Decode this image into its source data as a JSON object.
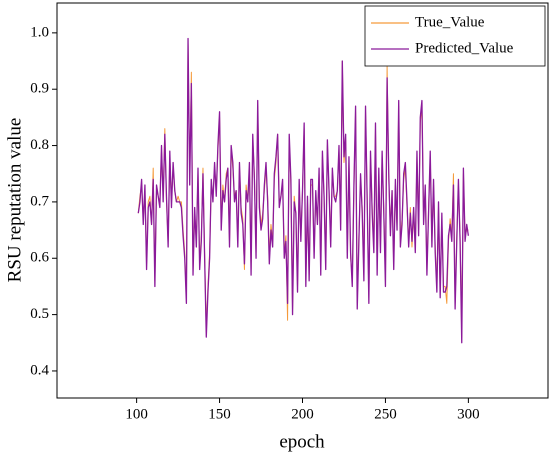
{
  "chart_data": {
    "type": "line",
    "xlabel": "epoch",
    "ylabel": "RSU reputation value",
    "xlim": [
      52,
      348
    ],
    "ylim": [
      0.352,
      1.053
    ],
    "xticks": [
      100,
      150,
      200,
      250,
      300
    ],
    "yticks": [
      0.4,
      0.5,
      0.6,
      0.7,
      0.8,
      0.9,
      {
        "value": 1,
        "label": "1.0"
      }
    ],
    "legend": "upper right",
    "x": [
      101,
      102,
      103,
      104,
      105,
      106,
      107,
      108,
      109,
      110,
      111,
      112,
      113,
      114,
      115,
      116,
      117,
      118,
      119,
      120,
      121,
      122,
      123,
      124,
      125,
      126,
      127,
      128,
      129,
      130,
      131,
      132,
      133,
      134,
      135,
      136,
      137,
      138,
      139,
      140,
      141,
      142,
      143,
      144,
      145,
      146,
      147,
      148,
      149,
      150,
      151,
      152,
      153,
      154,
      155,
      156,
      157,
      158,
      159,
      160,
      161,
      162,
      163,
      164,
      165,
      166,
      167,
      168,
      169,
      170,
      171,
      172,
      173,
      174,
      175,
      176,
      177,
      178,
      179,
      180,
      181,
      182,
      183,
      184,
      185,
      186,
      187,
      188,
      189,
      190,
      191,
      192,
      193,
      194,
      195,
      196,
      197,
      198,
      199,
      200,
      201,
      202,
      203,
      204,
      205,
      206,
      207,
      208,
      209,
      210,
      211,
      212,
      213,
      214,
      215,
      216,
      217,
      218,
      219,
      220,
      221,
      222,
      223,
      224,
      225,
      226,
      227,
      228,
      229,
      230,
      231,
      232,
      233,
      234,
      235,
      236,
      237,
      238,
      239,
      240,
      241,
      242,
      243,
      244,
      245,
      246,
      247,
      248,
      249,
      250,
      251,
      252,
      253,
      254,
      255,
      256,
      257,
      258,
      259,
      260,
      261,
      262,
      263,
      264,
      265,
      266,
      267,
      268,
      269,
      270,
      271,
      272,
      273,
      274,
      275,
      276,
      277,
      278,
      279,
      280,
      281,
      282,
      283,
      284,
      285,
      286,
      287,
      288,
      289,
      290,
      291,
      292,
      293,
      294,
      295,
      296,
      297,
      298,
      299,
      300
    ],
    "series": [
      {
        "name": "True_Value",
        "color": "#f59a3a",
        "values": [
          0.68,
          0.71,
          0.73,
          0.67,
          0.72,
          0.59,
          0.7,
          0.71,
          0.66,
          0.76,
          0.56,
          0.72,
          0.71,
          0.7,
          0.79,
          0.71,
          0.83,
          0.7,
          0.63,
          0.78,
          0.7,
          0.76,
          0.72,
          0.7,
          0.71,
          0.7,
          0.7,
          0.65,
          0.61,
          0.53,
          0.98,
          0.74,
          0.93,
          0.58,
          0.68,
          0.63,
          0.75,
          0.59,
          0.64,
          0.76,
          0.61,
          0.47,
          0.55,
          0.61,
          0.73,
          0.71,
          0.76,
          0.72,
          0.79,
          0.85,
          0.66,
          0.73,
          0.7,
          0.75,
          0.76,
          0.63,
          0.79,
          0.76,
          0.71,
          0.72,
          0.63,
          0.76,
          0.69,
          0.67,
          0.58,
          0.73,
          0.7,
          0.76,
          0.58,
          0.81,
          0.75,
          0.61,
          0.87,
          0.7,
          0.66,
          0.68,
          0.72,
          0.76,
          0.71,
          0.6,
          0.66,
          0.63,
          0.74,
          0.77,
          0.82,
          0.7,
          0.71,
          0.73,
          0.61,
          0.64,
          0.49,
          0.81,
          0.73,
          0.51,
          0.71,
          0.68,
          0.55,
          0.73,
          0.64,
          0.72,
          0.83,
          0.56,
          0.7,
          0.57,
          0.73,
          0.73,
          0.61,
          0.71,
          0.66,
          0.75,
          0.58,
          0.78,
          0.71,
          0.59,
          0.8,
          0.72,
          0.63,
          0.75,
          0.71,
          0.71,
          0.72,
          0.79,
          0.66,
          0.95,
          0.77,
          0.81,
          0.61,
          0.77,
          0.6,
          0.57,
          0.72,
          0.86,
          0.52,
          0.64,
          0.74,
          0.69,
          0.57,
          0.86,
          0.71,
          0.53,
          0.78,
          0.69,
          0.62,
          0.83,
          0.58,
          0.75,
          0.62,
          0.78,
          0.69,
          0.56,
          0.94,
          0.74,
          0.65,
          0.72,
          0.59,
          0.73,
          0.66,
          0.87,
          0.63,
          0.67,
          0.74,
          0.76,
          0.69,
          0.63,
          0.69,
          0.62,
          0.68,
          0.62,
          0.78,
          0.65,
          0.84,
          0.87,
          0.67,
          0.72,
          0.58,
          0.69,
          0.78,
          0.63,
          0.73,
          0.62,
          0.55,
          0.69,
          0.54,
          0.67,
          0.55,
          0.55,
          0.52,
          0.63,
          0.67,
          0.64,
          0.75,
          0.52,
          0.64,
          0.73,
          0.64,
          0.46,
          0.75,
          0.64,
          0.65,
          0.65
        ]
      },
      {
        "name": "Predicted_Value",
        "color": "#8b1a9a",
        "values": [
          0.68,
          0.7,
          0.74,
          0.66,
          0.73,
          0.58,
          0.69,
          0.7,
          0.66,
          0.74,
          0.55,
          0.73,
          0.71,
          0.69,
          0.8,
          0.7,
          0.82,
          0.71,
          0.62,
          0.79,
          0.69,
          0.77,
          0.72,
          0.7,
          0.7,
          0.7,
          0.69,
          0.64,
          0.6,
          0.52,
          0.99,
          0.73,
          0.91,
          0.57,
          0.69,
          0.62,
          0.76,
          0.58,
          0.63,
          0.75,
          0.6,
          0.46,
          0.54,
          0.6,
          0.74,
          0.7,
          0.77,
          0.71,
          0.8,
          0.86,
          0.65,
          0.72,
          0.7,
          0.74,
          0.76,
          0.62,
          0.8,
          0.77,
          0.7,
          0.72,
          0.62,
          0.77,
          0.68,
          0.66,
          0.59,
          0.72,
          0.7,
          0.77,
          0.57,
          0.82,
          0.74,
          0.6,
          0.88,
          0.69,
          0.65,
          0.67,
          0.73,
          0.77,
          0.7,
          0.59,
          0.65,
          0.62,
          0.75,
          0.78,
          0.82,
          0.69,
          0.71,
          0.74,
          0.6,
          0.63,
          0.52,
          0.82,
          0.74,
          0.5,
          0.7,
          0.68,
          0.54,
          0.74,
          0.63,
          0.72,
          0.84,
          0.55,
          0.71,
          0.56,
          0.74,
          0.74,
          0.6,
          0.72,
          0.66,
          0.76,
          0.57,
          0.79,
          0.71,
          0.58,
          0.81,
          0.72,
          0.62,
          0.76,
          0.71,
          0.7,
          0.72,
          0.8,
          0.65,
          0.95,
          0.78,
          0.82,
          0.6,
          0.78,
          0.61,
          0.55,
          0.73,
          0.87,
          0.51,
          0.63,
          0.75,
          0.68,
          0.56,
          0.87,
          0.7,
          0.52,
          0.79,
          0.68,
          0.61,
          0.84,
          0.57,
          0.76,
          0.61,
          0.79,
          0.68,
          0.55,
          0.92,
          0.75,
          0.64,
          0.72,
          0.58,
          0.74,
          0.65,
          0.88,
          0.62,
          0.66,
          0.75,
          0.77,
          0.7,
          0.62,
          0.68,
          0.63,
          0.69,
          0.61,
          0.79,
          0.64,
          0.85,
          0.88,
          0.66,
          0.73,
          0.57,
          0.68,
          0.79,
          0.62,
          0.74,
          0.61,
          0.54,
          0.7,
          0.53,
          0.68,
          0.54,
          0.54,
          0.55,
          0.64,
          0.66,
          0.63,
          0.73,
          0.51,
          0.63,
          0.74,
          0.63,
          0.45,
          0.76,
          0.63,
          0.66,
          0.64
        ]
      }
    ]
  }
}
